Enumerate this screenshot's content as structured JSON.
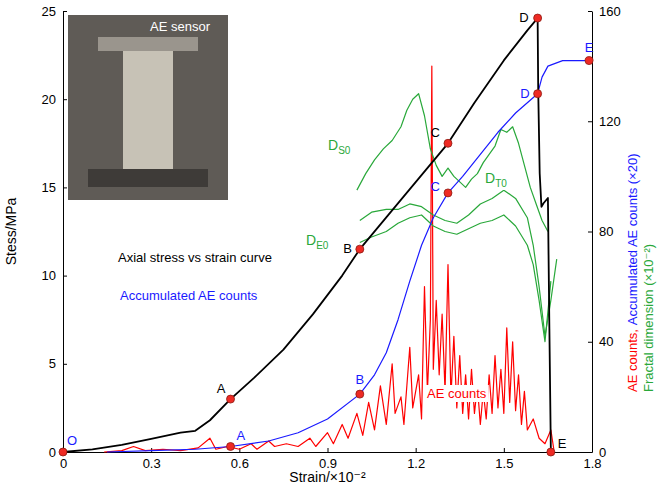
{
  "chart_data": {
    "type": "line",
    "x_label": "Strain/×10⁻²",
    "y_label": "Stess/MPa",
    "y2_label": [
      [
        {
          "text": "AE counts,",
          "color": "#ff0000"
        },
        {
          "text": "Accumulated AE counts (×20)",
          "color": "#1a1aff"
        }
      ],
      [
        {
          "text": "Fractal dimension (×10⁻²)",
          "color": "#29a83a"
        }
      ]
    ],
    "annotations": [
      "AE sensor"
    ],
    "xlim": [
      0,
      1.8
    ],
    "xticks": [
      0,
      0.3,
      0.6,
      0.9,
      1.2,
      1.5,
      1.8
    ],
    "ylim": [
      0,
      25
    ],
    "yticks": [
      0,
      5,
      10,
      15,
      20,
      25
    ],
    "y2lim": [
      0,
      160
    ],
    "y2ticks": [
      0,
      40,
      80,
      120,
      160
    ],
    "series": [
      {
        "name": "Axial stress vs strain curve",
        "color": "#000000",
        "x": [
          0,
          0.1,
          0.2,
          0.3,
          0.4,
          0.45,
          0.5,
          0.57,
          0.65,
          0.75,
          0.85,
          0.95,
          1.01,
          1.1,
          1.2,
          1.31,
          1.4,
          1.5,
          1.58,
          1.615,
          1.617,
          1.622,
          1.628,
          1.635,
          1.645,
          1.65,
          1.655,
          1.66
        ],
        "values": [
          0,
          0.15,
          0.4,
          0.75,
          1.1,
          1.2,
          1.8,
          3,
          4.2,
          5.8,
          7.8,
          10,
          11.5,
          13.3,
          15.3,
          17.5,
          19.8,
          22.2,
          23.9,
          24.6,
          20.5,
          15.8,
          13.9,
          14.1,
          14.3,
          14.4,
          7,
          0
        ],
        "points": {
          "labels": [
            "A",
            "B",
            "C",
            "D",
            "E"
          ],
          "x": [
            0.57,
            1.01,
            1.31,
            1.615,
            1.66
          ],
          "values": [
            3,
            11.5,
            17.5,
            24.6,
            0
          ]
        }
      },
      {
        "name": "Accumulated AE counts",
        "color": "#1a1aff",
        "axis": "y2",
        "x": [
          0.15,
          0.3,
          0.45,
          0.57,
          0.7,
          0.8,
          0.9,
          1.01,
          1.06,
          1.1,
          1.14,
          1.18,
          1.22,
          1.26,
          1.31,
          1.36,
          1.42,
          1.48,
          1.54,
          1.615,
          1.63,
          1.65,
          1.7,
          1.8
        ],
        "values": [
          0,
          0.5,
          1,
          2,
          4,
          7,
          12,
          21,
          28,
          36,
          48,
          62,
          75,
          85,
          94,
          100,
          108,
          116,
          123,
          130,
          136,
          140,
          142,
          142
        ],
        "points": {
          "labels": [
            "O",
            "A",
            "B",
            "C",
            "D",
            "E"
          ],
          "x": [
            0,
            0.57,
            1.01,
            1.31,
            1.615,
            1.79
          ],
          "values": [
            0,
            2,
            21,
            94,
            130,
            142
          ]
        }
      },
      {
        "name": "AE counts",
        "color": "#ff0000",
        "axis": "y2",
        "x": [
          0.14,
          0.2,
          0.24,
          0.28,
          0.34,
          0.4,
          0.46,
          0.5,
          0.52,
          0.56,
          0.6,
          0.64,
          0.66,
          0.7,
          0.72,
          0.76,
          0.8,
          0.84,
          0.86,
          0.9,
          0.92,
          0.95,
          0.97,
          1.0,
          1.02,
          1.04,
          1.06,
          1.08,
          1.1,
          1.12,
          1.13,
          1.15,
          1.16,
          1.18,
          1.19,
          1.21,
          1.22,
          1.23,
          1.24,
          1.25,
          1.255,
          1.26,
          1.27,
          1.28,
          1.29,
          1.3,
          1.31,
          1.32,
          1.33,
          1.34,
          1.35,
          1.36,
          1.37,
          1.38,
          1.39,
          1.4,
          1.41,
          1.42,
          1.43,
          1.44,
          1.45,
          1.46,
          1.47,
          1.48,
          1.49,
          1.5,
          1.51,
          1.52,
          1.53,
          1.54,
          1.55,
          1.56,
          1.57,
          1.58,
          1.6,
          1.62,
          1.64,
          1.66,
          1.67
        ],
        "values": [
          0,
          0.5,
          2,
          0.5,
          1,
          0.5,
          1.5,
          5,
          1,
          2,
          1,
          3,
          1,
          4,
          2,
          3,
          2,
          5,
          2,
          7,
          3,
          10,
          5,
          14,
          6,
          18,
          8,
          24,
          10,
          32,
          14,
          20,
          10,
          38,
          16,
          28,
          12,
          60,
          22,
          48,
          140,
          30,
          55,
          28,
          50,
          22,
          68,
          20,
          42,
          16,
          35,
          14,
          28,
          12,
          30,
          14,
          24,
          10,
          22,
          12,
          28,
          14,
          35,
          16,
          30,
          14,
          45,
          18,
          40,
          15,
          28,
          10,
          22,
          8,
          12,
          5,
          3,
          8,
          1
        ]
      },
      {
        "name": "DS0",
        "color": "#29a83a",
        "axis": "y2",
        "x": [
          1.0,
          1.03,
          1.06,
          1.09,
          1.12,
          1.15,
          1.17,
          1.19,
          1.21,
          1.23,
          1.25,
          1.27,
          1.29,
          1.31,
          1.33,
          1.35,
          1.37,
          1.39,
          1.41,
          1.43,
          1.45,
          1.47,
          1.49,
          1.51,
          1.53,
          1.55,
          1.57,
          1.59,
          1.61,
          1.63,
          1.65
        ],
        "values": [
          95,
          101,
          106,
          110,
          113,
          118,
          124,
          128,
          130,
          122,
          110,
          104,
          100,
          103,
          100,
          98,
          96,
          99,
          101,
          105,
          108,
          111,
          117,
          116,
          118,
          112,
          104,
          96,
          90,
          84,
          80
        ]
      },
      {
        "name": "DT0",
        "color": "#29a83a",
        "axis": "y2",
        "x": [
          1.01,
          1.05,
          1.1,
          1.14,
          1.18,
          1.22,
          1.26,
          1.3,
          1.34,
          1.38,
          1.42,
          1.46,
          1.5,
          1.54,
          1.58,
          1.6,
          1.62,
          1.64,
          1.66,
          1.68
        ],
        "values": [
          84,
          87,
          88,
          88,
          90,
          89,
          86,
          84,
          83,
          86,
          90,
          92,
          95,
          92,
          85,
          75,
          60,
          42,
          55,
          70
        ]
      },
      {
        "name": "DE0",
        "color": "#29a83a",
        "axis": "y2",
        "x": [
          1.01,
          1.05,
          1.1,
          1.14,
          1.18,
          1.22,
          1.26,
          1.3,
          1.34,
          1.38,
          1.42,
          1.46,
          1.5,
          1.54,
          1.58,
          1.6,
          1.62,
          1.64,
          1.66
        ],
        "values": [
          76,
          78,
          80,
          83,
          85,
          86,
          82,
          80,
          79,
          81,
          83,
          84,
          86,
          82,
          75,
          68,
          55,
          40,
          62
        ]
      }
    ]
  }
}
